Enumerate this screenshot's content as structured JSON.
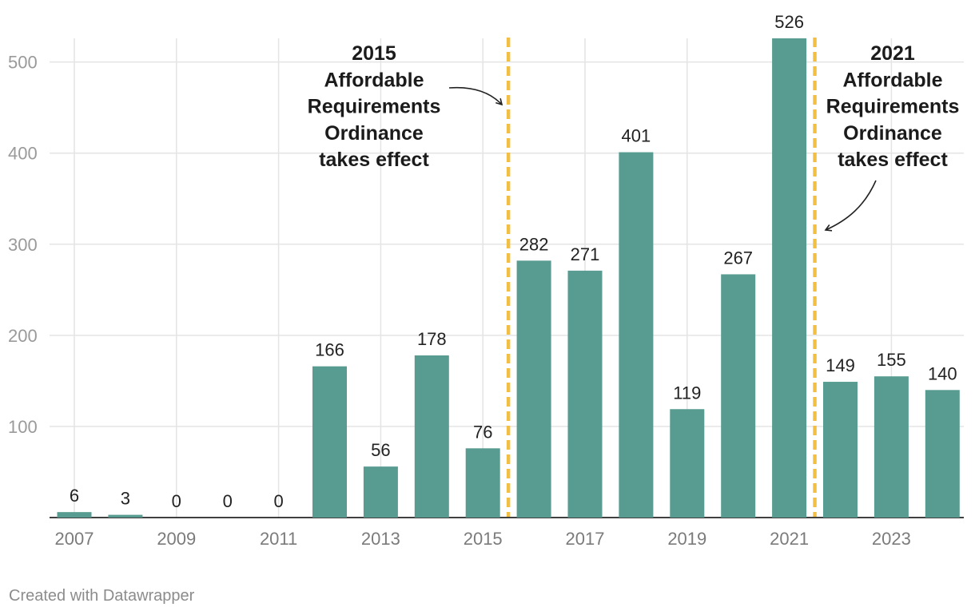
{
  "chart_data": {
    "type": "bar",
    "categories": [
      "2007",
      "2008",
      "2009",
      "2010",
      "2011",
      "2012",
      "2013",
      "2014",
      "2015",
      "2016",
      "2017",
      "2018",
      "2019",
      "2020",
      "2021",
      "2022",
      "2023",
      "2024"
    ],
    "values": [
      6,
      3,
      0,
      0,
      0,
      166,
      56,
      178,
      76,
      282,
      271,
      401,
      119,
      267,
      526,
      149,
      155,
      140
    ],
    "x_tick_labels": [
      "2007",
      "2009",
      "2011",
      "2013",
      "2015",
      "2017",
      "2019",
      "2021",
      "2023"
    ],
    "y_ticks": [
      100,
      200,
      300,
      400,
      500
    ],
    "ylim": [
      0,
      526
    ],
    "grid": true,
    "bar_color": "#589c91",
    "reference_lines": [
      {
        "after_category": "2015",
        "color": "#f2bf45",
        "style": "dashed",
        "annotation": [
          "2015",
          "Affordable",
          "Requirements",
          "Ordinance",
          "takes effect"
        ]
      },
      {
        "after_category": "2021",
        "color": "#f2bf45",
        "style": "dashed",
        "annotation": [
          "2021",
          "Affordable",
          "Requirements",
          "Ordinance",
          "takes effect"
        ]
      }
    ]
  },
  "footer": {
    "credit": "Created with Datawrapper"
  }
}
